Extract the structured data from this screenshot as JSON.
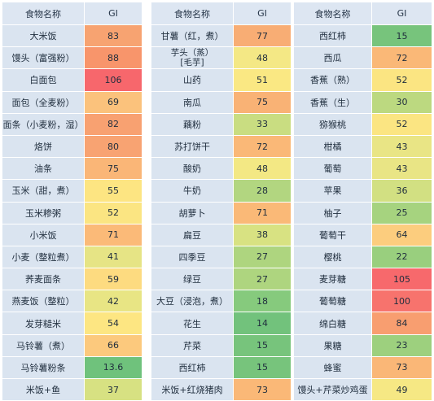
{
  "headers": {
    "food": "食物名称",
    "gi": "GI"
  },
  "columns": [
    [
      {
        "food": "大米饭",
        "gi": "83",
        "color": "#f7a371"
      },
      {
        "food": "馒头（富强粉）",
        "gi": "88",
        "color": "#f8956b"
      },
      {
        "food": "白面包",
        "gi": "106",
        "color": "#f7676c"
      },
      {
        "food": "面包（全麦粉）",
        "gi": "69",
        "color": "#fbc27c"
      },
      {
        "food": "面条（小麦粉，湿）",
        "gi": "82",
        "color": "#f8a171"
      },
      {
        "food": "烙饼",
        "gi": "80",
        "color": "#f8a372"
      },
      {
        "food": "油条",
        "gi": "75",
        "color": "#fab677"
      },
      {
        "food": "玉米（甜，煮）",
        "gi": "55",
        "color": "#fde582"
      },
      {
        "food": "玉米糁粥",
        "gi": "52",
        "color": "#fbe582"
      },
      {
        "food": "小米饭",
        "gi": "71",
        "color": "#fbba78"
      },
      {
        "food": "小麦（整粒煮）",
        "gi": "41",
        "color": "#e6e485"
      },
      {
        "food": "荞麦面条",
        "gi": "59",
        "color": "#fddb80"
      },
      {
        "food": "燕麦饭（整粒）",
        "gi": "42",
        "color": "#e8e584"
      },
      {
        "food": "发芽糙米",
        "gi": "54",
        "color": "#fde682"
      },
      {
        "food": "马铃薯（煮）",
        "gi": "66",
        "color": "#fcc97d"
      },
      {
        "food": "马铃薯粉条",
        "gi": "13.6",
        "color": "#6fc27c"
      },
      {
        "food": "米饭+鱼",
        "gi": "37",
        "color": "#d7e182"
      }
    ],
    [
      {
        "food": "甘薯（红，煮）",
        "gi": "77",
        "color": "#f8ad74"
      },
      {
        "food": "芋头（蒸）\n[毛芋]",
        "gi": "48",
        "color": "#f4e885"
      },
      {
        "food": "山药",
        "gi": "51",
        "color": "#fae883"
      },
      {
        "food": "南瓜",
        "gi": "75",
        "color": "#f9b275"
      },
      {
        "food": "藕粉",
        "gi": "33",
        "color": "#c9dd81"
      },
      {
        "food": "苏打饼干",
        "gi": "72",
        "color": "#fab877"
      },
      {
        "food": "酸奶",
        "gi": "48",
        "color": "#f3e884"
      },
      {
        "food": "牛奶",
        "gi": "28",
        "color": "#b2d680"
      },
      {
        "food": "胡萝卜",
        "gi": "71",
        "color": "#fab977"
      },
      {
        "food": "扁豆",
        "gi": "38",
        "color": "#d8e282"
      },
      {
        "food": "四季豆",
        "gi": "27",
        "color": "#aed57f"
      },
      {
        "food": "绿豆",
        "gi": "27",
        "color": "#aed57f"
      },
      {
        "food": "大豆（浸泡，煮）",
        "gi": "18",
        "color": "#86ca7d"
      },
      {
        "food": "花生",
        "gi": "14",
        "color": "#72c27c"
      },
      {
        "food": "芹菜",
        "gi": "15",
        "color": "#77c47c"
      },
      {
        "food": "西红柿",
        "gi": "15",
        "color": "#77c47c"
      },
      {
        "food": "米饭+红烧猪肉",
        "gi": "73",
        "color": "#fab877"
      }
    ],
    [
      {
        "food": "西红柿",
        "gi": "15",
        "color": "#77c47c"
      },
      {
        "food": "西瓜",
        "gi": "72",
        "color": "#fab877"
      },
      {
        "food": "香蕉（熟）",
        "gi": "52",
        "color": "#fbe582"
      },
      {
        "food": "香蕉（生）",
        "gi": "30",
        "color": "#bcd980"
      },
      {
        "food": "猕猴桃",
        "gi": "52",
        "color": "#fbe582"
      },
      {
        "food": "柑橘",
        "gi": "43",
        "color": "#e9e585"
      },
      {
        "food": "葡萄",
        "gi": "43",
        "color": "#e9e585"
      },
      {
        "food": "苹果",
        "gi": "36",
        "color": "#d2e082"
      },
      {
        "food": "柚子",
        "gi": "25",
        "color": "#a6d37f"
      },
      {
        "food": "葡萄干",
        "gi": "64",
        "color": "#fccd7e"
      },
      {
        "food": "樱桃",
        "gi": "22",
        "color": "#99cf7e"
      },
      {
        "food": "麦芽糖",
        "gi": "105",
        "color": "#f7696c"
      },
      {
        "food": "葡萄糖",
        "gi": "100",
        "color": "#f7736d"
      },
      {
        "food": "绵白糖",
        "gi": "84",
        "color": "#f89e70"
      },
      {
        "food": "果糖",
        "gi": "23",
        "color": "#9dd07e"
      },
      {
        "food": "蜂蜜",
        "gi": "73",
        "color": "#fab777"
      },
      {
        "food": "馒头+芹菜炒鸡蛋",
        "gi": "49",
        "color": "#f6e884"
      }
    ]
  ]
}
